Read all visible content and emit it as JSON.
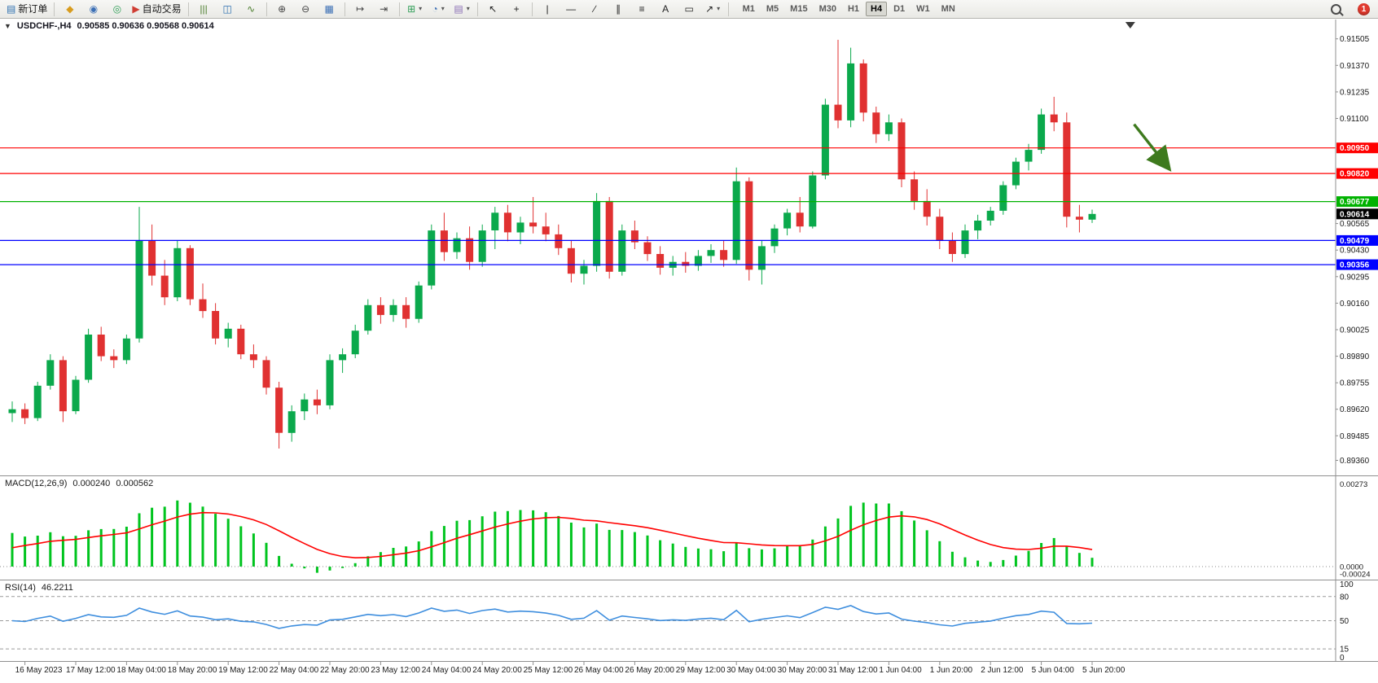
{
  "toolbar": {
    "notification_count": "1",
    "notification_color": "#E03A2E",
    "timeframes": [
      "M1",
      "M5",
      "M15",
      "M30",
      "H1",
      "H4",
      "D1",
      "W1",
      "MN"
    ],
    "active_timeframe": "H4",
    "icon_groups": [
      {
        "items": [
          {
            "name": "new-order-icon",
            "glyph": "▤",
            "color": "#2c6fb0",
            "label": "新订单"
          }
        ]
      },
      {
        "items": [
          {
            "name": "market-watch-icon",
            "glyph": "◆",
            "color": "#d89c1e"
          },
          {
            "name": "profiles-icon",
            "glyph": "◉",
            "color": "#3b6fb5"
          },
          {
            "name": "navigator-icon",
            "glyph": "◎",
            "color": "#2f9e57"
          },
          {
            "name": "autotrading-icon",
            "glyph": "▶",
            "color": "#cf3d33",
            "label": "自动交易"
          }
        ]
      },
      {
        "items": [
          {
            "name": "bar-chart-icon",
            "glyph": "|||",
            "color": "#4a7d2c"
          },
          {
            "name": "candlestick-chart-icon",
            "glyph": "◫",
            "color": "#2c6fb0"
          },
          {
            "name": "line-chart-icon",
            "glyph": "∿",
            "color": "#4a7d2c"
          }
        ]
      },
      {
        "items": [
          {
            "name": "zoom-in-icon",
            "glyph": "⊕",
            "color": "#444444"
          },
          {
            "name": "zoom-out-icon",
            "glyph": "⊖",
            "color": "#444444"
          },
          {
            "name": "tile-windows-icon",
            "glyph": "▦",
            "color": "#3b6fb5"
          }
        ]
      },
      {
        "items": [
          {
            "name": "auto-scroll-icon",
            "glyph": "↦",
            "color": "#444444"
          },
          {
            "name": "chart-shift-icon",
            "glyph": "⇥",
            "color": "#444444"
          }
        ]
      },
      {
        "items": [
          {
            "name": "indicators-icon",
            "glyph": "⊞",
            "color": "#2f9e57",
            "caret": true
          },
          {
            "name": "periods-icon",
            "glyph": "◔",
            "color": "#3b6fb5",
            "caret": true
          },
          {
            "name": "templates-icon",
            "glyph": "▤",
            "color": "#8a6fb5",
            "caret": true
          }
        ]
      },
      {
        "items": [
          {
            "name": "cursor-icon",
            "glyph": "↖",
            "color": "#222222"
          },
          {
            "name": "crosshair-icon",
            "glyph": "+",
            "color": "#222222"
          }
        ]
      },
      {
        "items": [
          {
            "name": "vertical-line-icon",
            "glyph": "|",
            "color": "#222222"
          },
          {
            "name": "horizontal-line-icon",
            "glyph": "—",
            "color": "#222222"
          },
          {
            "name": "trendline-icon",
            "glyph": "∕",
            "color": "#222222"
          },
          {
            "name": "channel-icon",
            "glyph": "∥",
            "color": "#222222"
          },
          {
            "name": "fibonacci-icon",
            "glyph": "≡",
            "color": "#222222"
          },
          {
            "name": "text-icon",
            "glyph": "A",
            "color": "#222222"
          },
          {
            "name": "label-icon",
            "glyph": "▭",
            "color": "#222222"
          },
          {
            "name": "arrows-icon",
            "glyph": "↗",
            "color": "#222222",
            "caret": true
          }
        ]
      }
    ]
  },
  "chart_data": {
    "type": "candlestick",
    "header": {
      "collapse_glyph": "▼",
      "symbol_period": "USDCHF-,H4",
      "ohlc": "0.90585 0.90636 0.90568 0.90614"
    },
    "colors": {
      "up": "#0BA94C",
      "down": "#E03131",
      "axis_text": "#1a1a1a",
      "macd_hist": "#00C41E",
      "macd_signal": "#FF0000",
      "rsi_line": "#3E8EDE",
      "arrow": "#3E7A1E"
    },
    "price_axis": {
      "ticks": [
        "0.91505",
        "0.91370",
        "0.91235",
        "0.91100",
        "0.90565",
        "0.90430",
        "0.90295",
        "0.90160",
        "0.90025",
        "0.89890",
        "0.89755",
        "0.89620",
        "0.89485",
        "0.89360"
      ]
    },
    "hlines": [
      {
        "price": 0.9095,
        "label": "0.90950",
        "color": "#FF0000"
      },
      {
        "price": 0.9082,
        "label": "0.90820",
        "color": "#FF0000"
      },
      {
        "price": 0.90677,
        "label": "0.90677",
        "color": "#00B200"
      },
      {
        "price": 0.90479,
        "label": "0.90479",
        "color": "#0000FF"
      },
      {
        "price": 0.90356,
        "label": "0.90356",
        "color": "#0000FF"
      }
    ],
    "current_price": {
      "price": 0.90614,
      "label": "0.90614",
      "color": "#000000"
    },
    "candles": [
      [
        0.896,
        0.8966,
        0.89555,
        0.8962
      ],
      [
        0.8962,
        0.8965,
        0.89545,
        0.89575
      ],
      [
        0.89575,
        0.8976,
        0.8956,
        0.8974
      ],
      [
        0.8974,
        0.899,
        0.8972,
        0.8987
      ],
      [
        0.8987,
        0.8989,
        0.89555,
        0.8961
      ],
      [
        0.8961,
        0.8979,
        0.89595,
        0.8977
      ],
      [
        0.8977,
        0.9003,
        0.89755,
        0.9
      ],
      [
        0.9,
        0.9004,
        0.89865,
        0.8989
      ],
      [
        0.8989,
        0.89925,
        0.8983,
        0.8987
      ],
      [
        0.8987,
        0.9,
        0.8985,
        0.8998
      ],
      [
        0.8998,
        0.9065,
        0.8996,
        0.9048
      ],
      [
        0.9048,
        0.9056,
        0.9025,
        0.903
      ],
      [
        0.903,
        0.9038,
        0.9015,
        0.9019
      ],
      [
        0.9019,
        0.9048,
        0.9017,
        0.9044
      ],
      [
        0.9044,
        0.90455,
        0.9015,
        0.9018
      ],
      [
        0.9018,
        0.9026,
        0.90085,
        0.9012
      ],
      [
        0.9012,
        0.9016,
        0.8995,
        0.8998
      ],
      [
        0.8998,
        0.9006,
        0.89935,
        0.9003
      ],
      [
        0.9003,
        0.9005,
        0.89875,
        0.899
      ],
      [
        0.899,
        0.8995,
        0.8983,
        0.8987
      ],
      [
        0.8987,
        0.8989,
        0.89695,
        0.8973
      ],
      [
        0.8973,
        0.8976,
        0.8942,
        0.895
      ],
      [
        0.895,
        0.8964,
        0.89455,
        0.8961
      ],
      [
        0.8961,
        0.897,
        0.89565,
        0.8967
      ],
      [
        0.8967,
        0.8972,
        0.89595,
        0.8964
      ],
      [
        0.8964,
        0.899,
        0.8962,
        0.8987
      ],
      [
        0.8987,
        0.8993,
        0.89805,
        0.899
      ],
      [
        0.899,
        0.9005,
        0.8988,
        0.9002
      ],
      [
        0.9002,
        0.9018,
        0.9,
        0.9015
      ],
      [
        0.9015,
        0.9019,
        0.90055,
        0.901
      ],
      [
        0.901,
        0.9018,
        0.90065,
        0.9015
      ],
      [
        0.9015,
        0.9019,
        0.90035,
        0.9008
      ],
      [
        0.9008,
        0.9027,
        0.9006,
        0.9025
      ],
      [
        0.9025,
        0.9056,
        0.9023,
        0.9053
      ],
      [
        0.9053,
        0.9062,
        0.90375,
        0.9042
      ],
      [
        0.9042,
        0.9052,
        0.90385,
        0.9049
      ],
      [
        0.9049,
        0.9055,
        0.9033,
        0.9037
      ],
      [
        0.9037,
        0.9056,
        0.90345,
        0.9053
      ],
      [
        0.9053,
        0.9065,
        0.90435,
        0.9062
      ],
      [
        0.9062,
        0.9066,
        0.90475,
        0.9052
      ],
      [
        0.9052,
        0.906,
        0.9046,
        0.9057
      ],
      [
        0.9057,
        0.907,
        0.90515,
        0.9055
      ],
      [
        0.9055,
        0.9062,
        0.90475,
        0.9051
      ],
      [
        0.9051,
        0.9056,
        0.90405,
        0.9044
      ],
      [
        0.9044,
        0.9048,
        0.90265,
        0.9031
      ],
      [
        0.9031,
        0.9038,
        0.90255,
        0.9035
      ],
      [
        0.9035,
        0.9072,
        0.9032,
        0.9068
      ],
      [
        0.9068,
        0.907,
        0.90285,
        0.9032
      ],
      [
        0.9032,
        0.9056,
        0.903,
        0.9053
      ],
      [
        0.9053,
        0.9058,
        0.90435,
        0.9047
      ],
      [
        0.9047,
        0.905,
        0.90375,
        0.9041
      ],
      [
        0.9041,
        0.9045,
        0.90305,
        0.9034
      ],
      [
        0.9034,
        0.904,
        0.903,
        0.9037
      ],
      [
        0.9037,
        0.9042,
        0.90315,
        0.9035
      ],
      [
        0.9035,
        0.9043,
        0.90325,
        0.904
      ],
      [
        0.904,
        0.9046,
        0.90365,
        0.9043
      ],
      [
        0.9043,
        0.9048,
        0.90345,
        0.9038
      ],
      [
        0.9038,
        0.9085,
        0.9036,
        0.9078
      ],
      [
        0.9078,
        0.908,
        0.90275,
        0.9033
      ],
      [
        0.9033,
        0.9048,
        0.90255,
        0.9045
      ],
      [
        0.9045,
        0.9056,
        0.90415,
        0.9054
      ],
      [
        0.9054,
        0.9064,
        0.90505,
        0.9062
      ],
      [
        0.9062,
        0.907,
        0.9052,
        0.9055
      ],
      [
        0.9055,
        0.9083,
        0.9054,
        0.9081
      ],
      [
        0.9081,
        0.912,
        0.9079,
        0.9117
      ],
      [
        0.9117,
        0.915,
        0.9105,
        0.9109
      ],
      [
        0.9109,
        0.9146,
        0.91055,
        0.9138
      ],
      [
        0.9138,
        0.914,
        0.91085,
        0.9113
      ],
      [
        0.9113,
        0.9116,
        0.90975,
        0.9102
      ],
      [
        0.9102,
        0.9112,
        0.90985,
        0.9108
      ],
      [
        0.9108,
        0.911,
        0.9075,
        0.9079
      ],
      [
        0.9079,
        0.9083,
        0.90635,
        0.9068
      ],
      [
        0.9068,
        0.9074,
        0.90555,
        0.906
      ],
      [
        0.906,
        0.9064,
        0.90435,
        0.9048
      ],
      [
        0.9048,
        0.9052,
        0.9037,
        0.9041
      ],
      [
        0.9041,
        0.9056,
        0.9039,
        0.9053
      ],
      [
        0.9053,
        0.9061,
        0.90485,
        0.9058
      ],
      [
        0.9058,
        0.9065,
        0.90555,
        0.9063
      ],
      [
        0.9063,
        0.9078,
        0.9061,
        0.9076
      ],
      [
        0.9076,
        0.909,
        0.9074,
        0.9088
      ],
      [
        0.9088,
        0.9097,
        0.90835,
        0.9094
      ],
      [
        0.9094,
        0.9115,
        0.9092,
        0.9112
      ],
      [
        0.9112,
        0.9121,
        0.91035,
        0.9108
      ],
      [
        0.9108,
        0.9113,
        0.90545,
        0.906
      ],
      [
        0.906,
        0.9066,
        0.9052,
        0.90585
      ],
      [
        0.90585,
        0.90636,
        0.90568,
        0.90614
      ]
    ],
    "time_labels": [
      {
        "bar": 1,
        "text": "16 May 2023"
      },
      {
        "bar": 5,
        "text": "17 May 12:00"
      },
      {
        "bar": 9,
        "text": "18 May 04:00"
      },
      {
        "bar": 13,
        "text": "18 May 20:00"
      },
      {
        "bar": 17,
        "text": "19 May 12:00"
      },
      {
        "bar": 21,
        "text": "22 May 04:00"
      },
      {
        "bar": 25,
        "text": "22 May 20:00"
      },
      {
        "bar": 29,
        "text": "23 May 12:00"
      },
      {
        "bar": 33,
        "text": "24 May 04:00"
      },
      {
        "bar": 37,
        "text": "24 May 20:00"
      },
      {
        "bar": 41,
        "text": "25 May 12:00"
      },
      {
        "bar": 45,
        "text": "26 May 04:00"
      },
      {
        "bar": 49,
        "text": "26 May 20:00"
      },
      {
        "bar": 53,
        "text": "29 May 12:00"
      },
      {
        "bar": 57,
        "text": "30 May 04:00"
      },
      {
        "bar": 61,
        "text": "30 May 20:00"
      },
      {
        "bar": 65,
        "text": "31 May 12:00"
      },
      {
        "bar": 69,
        "text": "1 Jun 04:00"
      },
      {
        "bar": 73,
        "text": "1 Jun 20:00"
      },
      {
        "bar": 77,
        "text": "2 Jun 12:00"
      },
      {
        "bar": 81,
        "text": "5 Jun 04:00"
      },
      {
        "bar": 85,
        "text": "5 Jun 20:00"
      }
    ],
    "indicators": {
      "macd": {
        "label": "MACD(12,26,9)",
        "main_value": "0.000240",
        "signal_value": "0.000562",
        "fast": 12,
        "slow": 26,
        "smoothing": 9,
        "seed_offset": 0.0012,
        "signal_seed": 0.0005,
        "scale_labels": [
          {
            "v": 0.00273,
            "text": "0.00273"
          },
          {
            "v": 0,
            "text": "0.0000"
          },
          {
            "v": -0.00024,
            "text": "-0.00024"
          }
        ]
      },
      "rsi": {
        "label": "RSI(14)",
        "value": "46.2211",
        "period": 14,
        "levels": [
          80,
          50,
          15
        ],
        "scale_labels": [
          {
            "v": 100,
            "text": "100"
          },
          {
            "v": 80,
            "text": "80"
          },
          {
            "v": 50,
            "text": "50"
          },
          {
            "v": 15,
            "text": "15"
          },
          {
            "v": 0,
            "text": "0"
          }
        ]
      }
    },
    "annotation_arrow": {
      "from_bar": 88.3,
      "from_price": 0.9107,
      "to_bar": 91.1,
      "to_price": 0.9084
    },
    "shift_marker_bar": 88
  }
}
